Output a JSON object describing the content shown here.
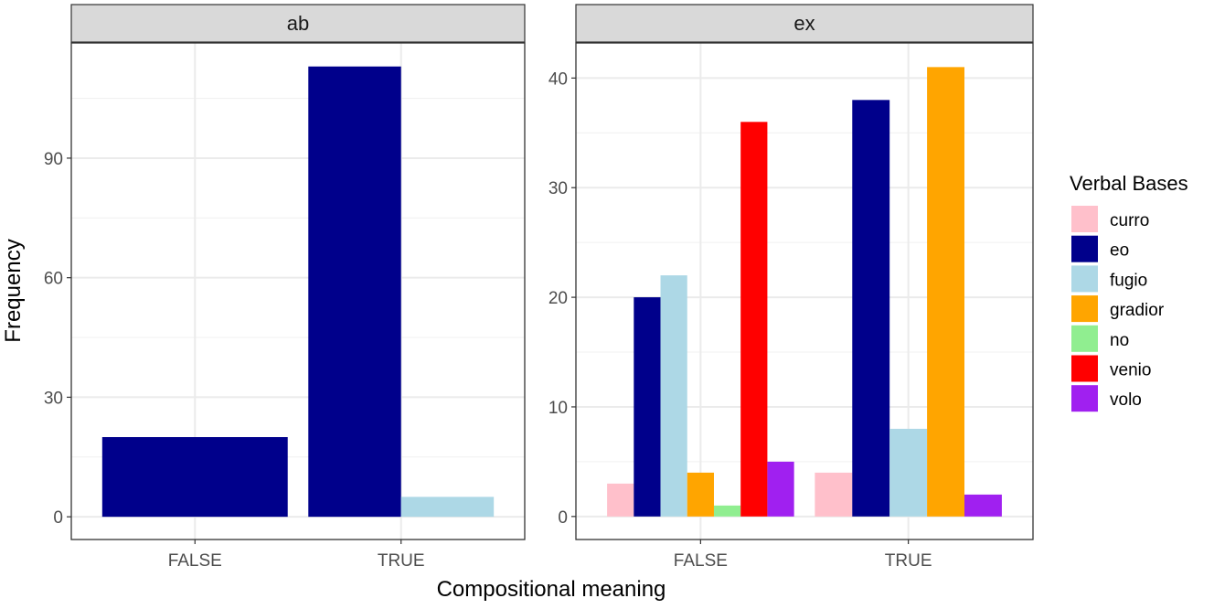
{
  "chart_data": {
    "type": "bar",
    "xlabel": "Compositional meaning",
    "ylabel": "Frequency",
    "legend": {
      "title": "Verbal Bases",
      "placement": "right"
    },
    "series_colors": {
      "curro": "#FFC0CB",
      "eo": "#00008B",
      "fugio": "#ADD8E6",
      "gradior": "#FFA500",
      "no": "#90EE90",
      "venio": "#FF0000",
      "volo": "#A020F0"
    },
    "series_order": [
      "curro",
      "eo",
      "fugio",
      "gradior",
      "no",
      "venio",
      "volo"
    ],
    "categories": [
      "FALSE",
      "TRUE"
    ],
    "grid": true,
    "panels": [
      {
        "title": "ab",
        "ylim": [
          -5.7,
          118.9
        ],
        "yticks": [
          0,
          30,
          60,
          90
        ],
        "bars": {
          "FALSE": [
            {
              "series": "eo",
              "value": 20
            }
          ],
          "TRUE": [
            {
              "series": "eo",
              "value": 113
            },
            {
              "series": "fugio",
              "value": 5
            }
          ]
        }
      },
      {
        "title": "ex",
        "ylim": [
          -2.1,
          43.2
        ],
        "yticks": [
          0,
          10,
          20,
          30,
          40
        ],
        "bars": {
          "FALSE": [
            {
              "series": "curro",
              "value": 3
            },
            {
              "series": "eo",
              "value": 20
            },
            {
              "series": "fugio",
              "value": 22
            },
            {
              "series": "gradior",
              "value": 4
            },
            {
              "series": "no",
              "value": 1
            },
            {
              "series": "venio",
              "value": 36
            },
            {
              "series": "volo",
              "value": 5
            }
          ],
          "TRUE": [
            {
              "series": "curro",
              "value": 4
            },
            {
              "series": "eo",
              "value": 38
            },
            {
              "series": "fugio",
              "value": 8
            },
            {
              "series": "gradior",
              "value": 41
            },
            {
              "series": "volo",
              "value": 2
            }
          ]
        }
      }
    ]
  }
}
